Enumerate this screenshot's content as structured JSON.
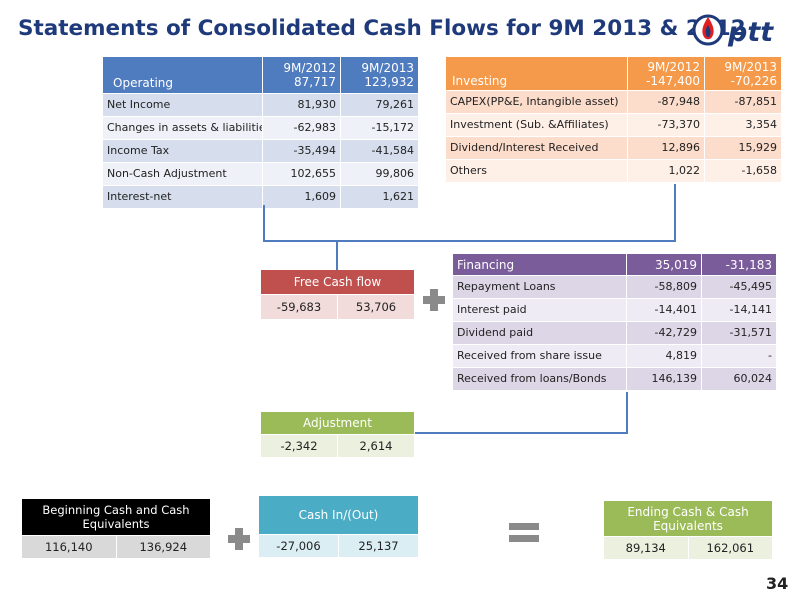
{
  "title": "Statements of Consolidated Cash Flows for 9M 2013 & 2012",
  "logo": {
    "text": "pttt",
    "icon": "ptt-flame-logo-icon"
  },
  "page_number": "34",
  "colors": {
    "title": "#1f3a7a",
    "operating": "#4f7bbf",
    "investing": "#f59a4a",
    "financing": "#7a5c9a",
    "free_cash": "#c0504d",
    "adjustment": "#9bbb59",
    "cash_in_out": "#4bacc6",
    "beginning": "#000000",
    "ending": "#9bbb59"
  },
  "operating": {
    "label": "Operating",
    "col1": "9M/2012",
    "col1_total": "87,717",
    "col2": "9M/2013",
    "col2_total": "123,932",
    "rows": [
      {
        "label": "Net Income",
        "v2012": "81,930",
        "v2013": "79,261"
      },
      {
        "label": "Changes in assets & liabilities",
        "v2012": "-62,983",
        "v2013": "-15,172"
      },
      {
        "label": "Income Tax",
        "v2012": "-35,494",
        "v2013": "-41,584"
      },
      {
        "label": "Non-Cash  Adjustment",
        "v2012": "102,655",
        "v2013": "99,806"
      },
      {
        "label": "Interest-net",
        "v2012": "1,609",
        "v2013": "1,621"
      }
    ]
  },
  "investing": {
    "label": "Investing",
    "col1": "9M/2012",
    "col1_total": "-147,400",
    "col2": "9M/2013",
    "col2_total": "-70,226",
    "rows": [
      {
        "label": "CAPEX(PP&E, Intangible asset)",
        "v2012": "-87,948",
        "v2013": "-87,851"
      },
      {
        "label": "Investment (Sub. &Affiliates)",
        "v2012": "-73,370",
        "v2013": "3,354"
      },
      {
        "label": "Dividend/Interest Received",
        "v2012": "12,896",
        "v2013": "15,929"
      },
      {
        "label": "Others",
        "v2012": "1,022",
        "v2013": "-1,658"
      }
    ]
  },
  "financing": {
    "label": "Financing",
    "total2012": "35,019",
    "total2013": "-31,183",
    "rows": [
      {
        "label": "Repayment  Loans",
        "v2012": "-58,809",
        "v2013": "-45,495"
      },
      {
        "label": "Interest paid",
        "v2012": "-14,401",
        "v2013": "-14,141"
      },
      {
        "label": "Dividend paid",
        "v2012": "-42,729",
        "v2013": "-31,571"
      },
      {
        "label": "Received from share issue",
        "v2012": "4,819",
        "v2013": "-"
      },
      {
        "label": "Received from loans/Bonds",
        "v2012": "146,139",
        "v2013": "60,024"
      }
    ]
  },
  "free_cash_flow": {
    "label": "Free Cash flow",
    "v2012": "-59,683",
    "v2013": "53,706"
  },
  "adjustment": {
    "label": "Adjustment",
    "v2012": "-2,342",
    "v2013": "2,614"
  },
  "cash_in_out": {
    "label": "Cash In/(Out)",
    "v2012": "-27,006",
    "v2013": "25,137"
  },
  "beginning_cash": {
    "label": "Beginning Cash and Cash Equivalents",
    "v2012": "116,140",
    "v2013": "136,924"
  },
  "ending_cash": {
    "label": "Ending Cash & Cash Equivalents",
    "v2012": "89,134",
    "v2013": "162,061"
  }
}
